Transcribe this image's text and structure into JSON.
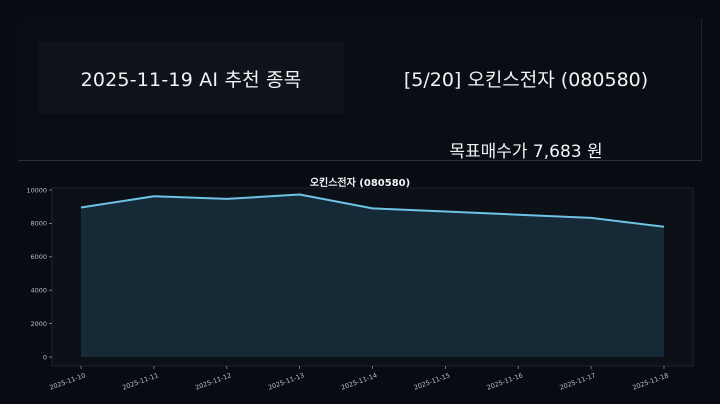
{
  "header": {
    "date_title": "2025-11-19 AI 추천 종목",
    "stock_title": "[5/20] 오킨스전자 (080580)",
    "target_price": "목표매수가 7,683 원"
  },
  "chart_data": {
    "type": "area",
    "title": "오킨스전자 (080580)",
    "x": [
      "2025-11-10",
      "2025-11-11",
      "2025-11-12",
      "2025-11-13",
      "2025-11-14",
      "2025-11-15",
      "2025-11-16",
      "2025-11-17",
      "2025-11-18"
    ],
    "values": [
      8950,
      9620,
      9470,
      9730,
      8900,
      8710,
      8520,
      8330,
      7800
    ],
    "ylim": [
      0,
      10000
    ],
    "yticks": [
      0,
      2000,
      4000,
      6000,
      8000,
      10000
    ],
    "line_color": "#6ec3e6",
    "fill_color": "#162937",
    "grid": false,
    "legend": "none"
  },
  "colors": {
    "background": "#080c12",
    "panel": "#0e1319",
    "text": "#f1f3f6"
  }
}
